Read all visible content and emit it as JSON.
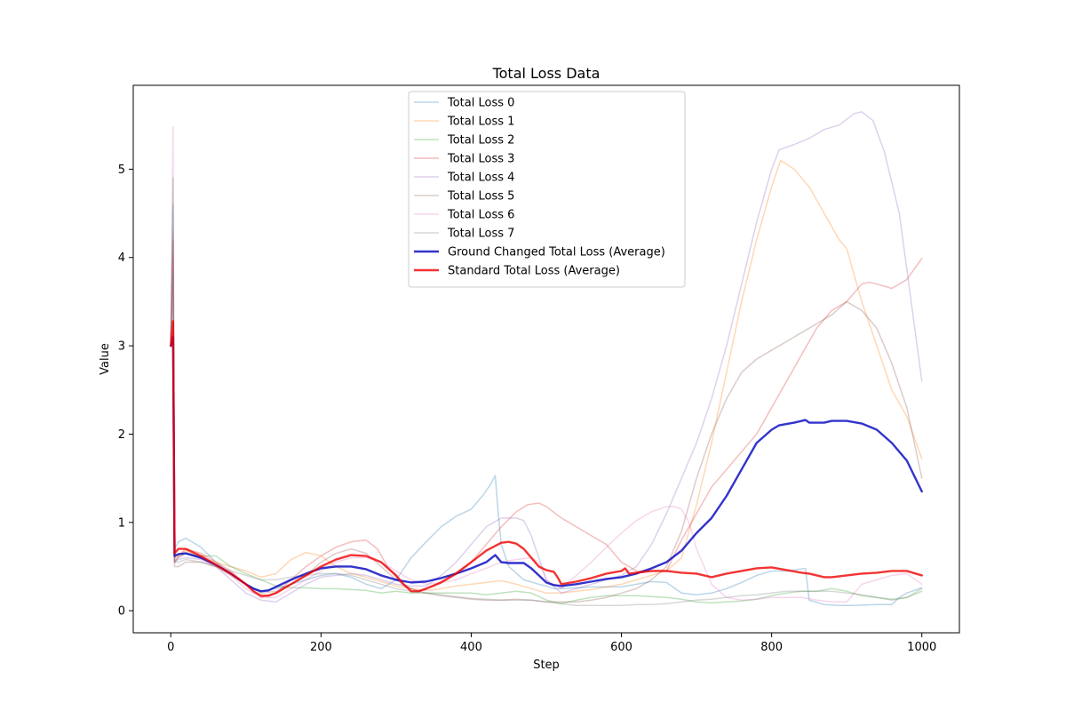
{
  "chart_data": {
    "type": "line",
    "title": "Total Loss Data",
    "xlabel": "Step",
    "ylabel": "Value",
    "xlim": [
      -50,
      1050
    ],
    "ylim": [
      -0.25,
      5.95
    ],
    "x_ticks": [
      0,
      200,
      400,
      600,
      800,
      1000
    ],
    "y_ticks": [
      0,
      1,
      2,
      3,
      4,
      5
    ],
    "grid": false,
    "legend_position": "top-center",
    "series": [
      {
        "name": "Total Loss 0",
        "color": "#1f77b4",
        "opacity": 0.3,
        "linewidth": 1.5,
        "x": [
          0,
          3,
          5,
          10,
          20,
          40,
          60,
          80,
          100,
          120,
          140,
          160,
          180,
          200,
          220,
          240,
          260,
          280,
          300,
          320,
          340,
          360,
          380,
          400,
          415,
          425,
          432,
          436,
          440,
          450,
          470,
          490,
          500,
          510,
          520,
          540,
          560,
          580,
          600,
          620,
          640,
          660,
          680,
          700,
          720,
          740,
          760,
          780,
          800,
          820,
          845,
          850,
          870,
          890,
          910,
          940,
          960,
          970,
          980,
          1000
        ],
        "values": [
          3.0,
          4.6,
          0.7,
          0.78,
          0.82,
          0.72,
          0.55,
          0.42,
          0.3,
          0.22,
          0.25,
          0.3,
          0.35,
          0.4,
          0.42,
          0.38,
          0.3,
          0.25,
          0.35,
          0.6,
          0.78,
          0.95,
          1.07,
          1.15,
          1.3,
          1.42,
          1.53,
          1.1,
          0.75,
          0.5,
          0.35,
          0.3,
          0.28,
          0.25,
          0.25,
          0.26,
          0.27,
          0.27,
          0.27,
          0.3,
          0.33,
          0.32,
          0.2,
          0.18,
          0.2,
          0.25,
          0.32,
          0.4,
          0.45,
          0.45,
          0.48,
          0.12,
          0.07,
          0.06,
          0.06,
          0.07,
          0.07,
          0.15,
          0.2,
          0.26
        ]
      },
      {
        "name": "Total Loss 1",
        "color": "#ff7f0e",
        "opacity": 0.3,
        "linewidth": 1.5,
        "x": [
          0,
          3,
          5,
          10,
          20,
          40,
          60,
          80,
          100,
          120,
          140,
          160,
          180,
          200,
          220,
          240,
          260,
          280,
          300,
          320,
          340,
          360,
          380,
          400,
          420,
          440,
          460,
          480,
          500,
          520,
          540,
          560,
          580,
          600,
          620,
          640,
          660,
          680,
          700,
          720,
          740,
          760,
          780,
          800,
          812,
          830,
          850,
          870,
          890,
          900,
          920,
          940,
          960,
          980,
          1000
        ],
        "values": [
          3.0,
          4.2,
          0.6,
          0.62,
          0.68,
          0.6,
          0.55,
          0.5,
          0.45,
          0.38,
          0.42,
          0.58,
          0.66,
          0.62,
          0.5,
          0.42,
          0.38,
          0.33,
          0.28,
          0.25,
          0.23,
          0.25,
          0.28,
          0.3,
          0.32,
          0.34,
          0.3,
          0.25,
          0.2,
          0.2,
          0.22,
          0.24,
          0.27,
          0.3,
          0.35,
          0.4,
          0.45,
          0.6,
          1.2,
          1.9,
          2.7,
          3.5,
          4.2,
          4.8,
          5.1,
          5.0,
          4.8,
          4.5,
          4.2,
          4.1,
          3.5,
          3.0,
          2.5,
          2.2,
          1.72
        ]
      },
      {
        "name": "Total Loss 2",
        "color": "#2ca02c",
        "opacity": 0.3,
        "linewidth": 1.5,
        "x": [
          0,
          3,
          5,
          10,
          20,
          40,
          60,
          80,
          100,
          120,
          140,
          160,
          180,
          200,
          220,
          240,
          260,
          280,
          300,
          320,
          340,
          360,
          380,
          400,
          420,
          440,
          460,
          480,
          500,
          520,
          540,
          560,
          580,
          600,
          620,
          640,
          660,
          680,
          700,
          720,
          740,
          760,
          780,
          800,
          820,
          840,
          860,
          880,
          900,
          920,
          940,
          960,
          980,
          1000
        ],
        "values": [
          3.0,
          4.9,
          0.55,
          0.6,
          0.65,
          0.62,
          0.62,
          0.5,
          0.42,
          0.35,
          0.28,
          0.26,
          0.26,
          0.25,
          0.25,
          0.24,
          0.23,
          0.2,
          0.22,
          0.2,
          0.2,
          0.2,
          0.2,
          0.2,
          0.18,
          0.2,
          0.22,
          0.2,
          0.12,
          0.08,
          0.12,
          0.15,
          0.17,
          0.17,
          0.17,
          0.16,
          0.15,
          0.13,
          0.1,
          0.09,
          0.1,
          0.11,
          0.13,
          0.17,
          0.2,
          0.22,
          0.22,
          0.25,
          0.22,
          0.17,
          0.15,
          0.13,
          0.15,
          0.22
        ]
      },
      {
        "name": "Total Loss 3",
        "color": "#d62728",
        "opacity": 0.3,
        "linewidth": 1.5,
        "x": [
          0,
          3,
          5,
          10,
          20,
          40,
          60,
          80,
          100,
          120,
          140,
          160,
          180,
          200,
          220,
          240,
          260,
          275,
          290,
          310,
          330,
          350,
          370,
          400,
          420,
          440,
          460,
          475,
          490,
          500,
          520,
          540,
          560,
          580,
          600,
          620,
          640,
          660,
          680,
          700,
          720,
          740,
          760,
          780,
          800,
          820,
          840,
          860,
          880,
          900,
          920,
          930,
          940,
          960,
          980,
          1000
        ],
        "values": [
          3.0,
          4.0,
          0.55,
          0.62,
          0.7,
          0.65,
          0.55,
          0.45,
          0.3,
          0.15,
          0.2,
          0.35,
          0.5,
          0.62,
          0.72,
          0.78,
          0.8,
          0.7,
          0.48,
          0.28,
          0.22,
          0.28,
          0.38,
          0.55,
          0.75,
          0.95,
          1.12,
          1.2,
          1.22,
          1.18,
          1.05,
          0.95,
          0.85,
          0.75,
          0.55,
          0.45,
          0.45,
          0.45,
          0.8,
          1.1,
          1.4,
          1.6,
          1.8,
          2.0,
          2.3,
          2.6,
          2.9,
          3.2,
          3.4,
          3.5,
          3.7,
          3.72,
          3.7,
          3.65,
          3.75,
          3.99
        ]
      },
      {
        "name": "Total Loss 4",
        "color": "#9467bd",
        "opacity": 0.3,
        "linewidth": 1.5,
        "x": [
          0,
          3,
          5,
          10,
          20,
          40,
          60,
          80,
          100,
          120,
          140,
          160,
          180,
          200,
          220,
          240,
          260,
          280,
          300,
          320,
          340,
          360,
          380,
          400,
          420,
          440,
          460,
          470,
          480,
          490,
          500,
          520,
          540,
          560,
          580,
          600,
          620,
          640,
          660,
          680,
          700,
          720,
          740,
          760,
          780,
          800,
          810,
          830,
          850,
          870,
          890,
          910,
          920,
          935,
          950,
          970,
          1000
        ],
        "values": [
          3.0,
          4.3,
          0.55,
          0.58,
          0.6,
          0.58,
          0.5,
          0.35,
          0.2,
          0.12,
          0.1,
          0.2,
          0.3,
          0.38,
          0.4,
          0.42,
          0.4,
          0.35,
          0.3,
          0.28,
          0.28,
          0.4,
          0.55,
          0.75,
          0.95,
          1.05,
          1.05,
          1.02,
          0.85,
          0.6,
          0.35,
          0.2,
          0.25,
          0.3,
          0.35,
          0.4,
          0.5,
          0.75,
          1.1,
          1.5,
          1.9,
          2.4,
          3.0,
          3.7,
          4.4,
          5.0,
          5.22,
          5.28,
          5.35,
          5.45,
          5.5,
          5.63,
          5.65,
          5.55,
          5.2,
          4.5,
          2.6
        ]
      },
      {
        "name": "Total Loss 5",
        "color": "#8c564b",
        "opacity": 0.3,
        "linewidth": 1.5,
        "x": [
          0,
          3,
          5,
          10,
          20,
          40,
          60,
          80,
          100,
          120,
          140,
          160,
          180,
          200,
          220,
          240,
          260,
          280,
          300,
          320,
          340,
          360,
          380,
          400,
          420,
          440,
          460,
          480,
          500,
          520,
          540,
          560,
          580,
          600,
          620,
          640,
          660,
          680,
          700,
          720,
          740,
          760,
          780,
          800,
          820,
          840,
          860,
          880,
          900,
          920,
          940,
          960,
          980,
          1000
        ],
        "values": [
          3.0,
          4.2,
          0.5,
          0.5,
          0.55,
          0.55,
          0.5,
          0.4,
          0.3,
          0.2,
          0.22,
          0.3,
          0.4,
          0.55,
          0.65,
          0.7,
          0.65,
          0.5,
          0.35,
          0.25,
          0.2,
          0.17,
          0.15,
          0.13,
          0.12,
          0.12,
          0.13,
          0.12,
          0.1,
          0.1,
          0.1,
          0.12,
          0.15,
          0.2,
          0.25,
          0.35,
          0.5,
          0.9,
          1.5,
          2.0,
          2.4,
          2.7,
          2.85,
          2.95,
          3.05,
          3.15,
          3.25,
          3.35,
          3.5,
          3.4,
          3.2,
          2.8,
          2.3,
          1.5
        ]
      },
      {
        "name": "Total Loss 6",
        "color": "#e377c2",
        "opacity": 0.3,
        "linewidth": 1.5,
        "x": [
          0,
          3,
          5,
          10,
          20,
          40,
          60,
          80,
          100,
          120,
          140,
          160,
          180,
          200,
          220,
          240,
          260,
          280,
          300,
          320,
          340,
          360,
          380,
          400,
          420,
          440,
          460,
          480,
          490,
          500,
          520,
          540,
          560,
          580,
          600,
          620,
          640,
          660,
          670,
          680,
          690,
          700,
          720,
          740,
          760,
          780,
          800,
          820,
          840,
          860,
          880,
          900,
          920,
          940,
          960,
          980,
          1000
        ],
        "values": [
          3.0,
          5.48,
          0.55,
          0.6,
          0.65,
          0.6,
          0.5,
          0.4,
          0.25,
          0.15,
          0.15,
          0.25,
          0.35,
          0.45,
          0.55,
          0.6,
          0.6,
          0.55,
          0.45,
          0.35,
          0.3,
          0.32,
          0.35,
          0.42,
          0.48,
          0.55,
          0.58,
          0.6,
          0.55,
          0.35,
          0.25,
          0.4,
          0.55,
          0.72,
          0.88,
          1.02,
          1.12,
          1.18,
          1.18,
          1.15,
          1.0,
          0.7,
          0.3,
          0.15,
          0.12,
          0.13,
          0.15,
          0.15,
          0.15,
          0.12,
          0.1,
          0.1,
          0.3,
          0.35,
          0.4,
          0.42,
          0.3
        ]
      },
      {
        "name": "Total Loss 7",
        "color": "#7f7f7f",
        "opacity": 0.3,
        "linewidth": 1.5,
        "x": [
          0,
          3,
          5,
          10,
          20,
          40,
          60,
          80,
          100,
          120,
          140,
          160,
          180,
          200,
          220,
          240,
          260,
          280,
          300,
          320,
          340,
          360,
          380,
          400,
          420,
          440,
          460,
          480,
          500,
          520,
          540,
          560,
          580,
          600,
          620,
          640,
          660,
          680,
          700,
          720,
          740,
          760,
          780,
          800,
          820,
          840,
          860,
          880,
          900,
          920,
          940,
          960,
          980,
          1000
        ],
        "values": [
          3.0,
          3.8,
          0.55,
          0.55,
          0.58,
          0.55,
          0.5,
          0.45,
          0.4,
          0.35,
          0.35,
          0.38,
          0.4,
          0.42,
          0.42,
          0.4,
          0.35,
          0.3,
          0.25,
          0.22,
          0.2,
          0.18,
          0.16,
          0.14,
          0.13,
          0.12,
          0.12,
          0.12,
          0.1,
          0.08,
          0.06,
          0.06,
          0.06,
          0.06,
          0.07,
          0.07,
          0.08,
          0.1,
          0.12,
          0.13,
          0.15,
          0.17,
          0.18,
          0.2,
          0.22,
          0.22,
          0.22,
          0.22,
          0.2,
          0.18,
          0.15,
          0.12,
          0.15,
          0.25
        ]
      },
      {
        "name": "Ground Changed Total Loss (Average)",
        "color": "#0000bf",
        "opacity": 0.8,
        "linewidth": 2.4,
        "x": [
          0,
          3,
          5,
          10,
          20,
          40,
          60,
          80,
          100,
          110,
          120,
          130,
          140,
          160,
          180,
          200,
          220,
          240,
          260,
          280,
          300,
          320,
          340,
          360,
          380,
          400,
          420,
          432,
          440,
          450,
          470,
          480,
          490,
          500,
          510,
          520,
          540,
          560,
          580,
          600,
          620,
          640,
          660,
          680,
          700,
          720,
          740,
          760,
          780,
          800,
          810,
          830,
          845,
          850,
          870,
          880,
          900,
          920,
          940,
          960,
          980,
          1000
        ],
        "values": [
          3.0,
          3.1,
          0.62,
          0.64,
          0.65,
          0.6,
          0.52,
          0.42,
          0.3,
          0.25,
          0.22,
          0.23,
          0.27,
          0.35,
          0.42,
          0.48,
          0.5,
          0.5,
          0.47,
          0.4,
          0.35,
          0.32,
          0.33,
          0.37,
          0.42,
          0.48,
          0.55,
          0.63,
          0.55,
          0.54,
          0.54,
          0.48,
          0.4,
          0.32,
          0.29,
          0.28,
          0.3,
          0.33,
          0.36,
          0.38,
          0.42,
          0.48,
          0.55,
          0.68,
          0.88,
          1.05,
          1.3,
          1.6,
          1.9,
          2.05,
          2.1,
          2.13,
          2.16,
          2.13,
          2.13,
          2.15,
          2.15,
          2.12,
          2.05,
          1.9,
          1.7,
          1.35
        ]
      },
      {
        "name": "Standard Total Loss (Average)",
        "color": "#f00000",
        "opacity": 0.8,
        "linewidth": 2.4,
        "x": [
          0,
          3,
          5,
          10,
          20,
          40,
          60,
          80,
          100,
          110,
          120,
          130,
          140,
          160,
          180,
          200,
          220,
          240,
          260,
          280,
          300,
          310,
          320,
          330,
          340,
          360,
          380,
          400,
          420,
          440,
          450,
          460,
          470,
          480,
          490,
          500,
          510,
          515,
          520,
          540,
          560,
          580,
          600,
          605,
          610,
          620,
          640,
          660,
          680,
          700,
          720,
          740,
          760,
          780,
          800,
          820,
          840,
          850,
          860,
          870,
          880,
          900,
          920,
          940,
          960,
          980,
          1000
        ],
        "values": [
          3.0,
          3.28,
          0.65,
          0.7,
          0.7,
          0.62,
          0.52,
          0.42,
          0.3,
          0.22,
          0.17,
          0.17,
          0.2,
          0.3,
          0.4,
          0.5,
          0.58,
          0.63,
          0.62,
          0.55,
          0.4,
          0.3,
          0.22,
          0.22,
          0.25,
          0.32,
          0.42,
          0.55,
          0.68,
          0.77,
          0.78,
          0.76,
          0.7,
          0.6,
          0.5,
          0.46,
          0.44,
          0.38,
          0.3,
          0.33,
          0.37,
          0.42,
          0.45,
          0.48,
          0.42,
          0.43,
          0.45,
          0.45,
          0.43,
          0.42,
          0.38,
          0.42,
          0.45,
          0.48,
          0.49,
          0.46,
          0.43,
          0.42,
          0.4,
          0.38,
          0.38,
          0.4,
          0.42,
          0.43,
          0.45,
          0.45,
          0.4
        ]
      }
    ]
  }
}
